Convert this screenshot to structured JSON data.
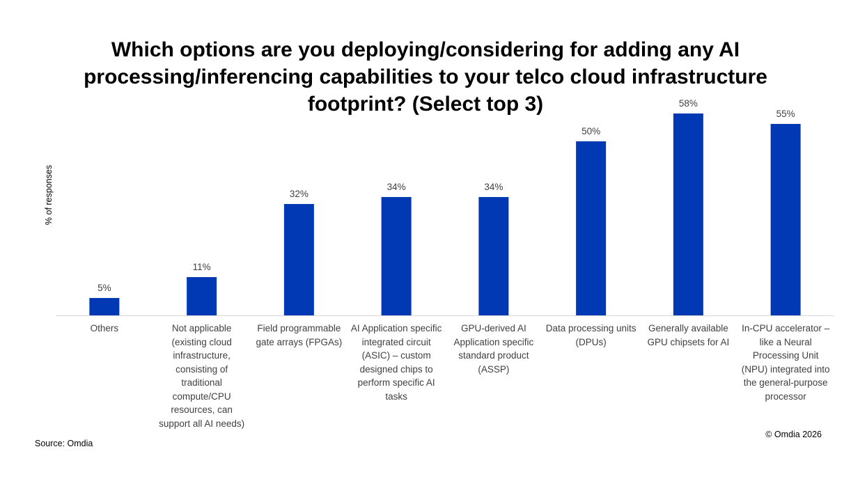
{
  "chart_data": {
    "type": "bar",
    "title": "Which options are you deploying/considering for adding any AI processing/inferencing capabilities to your telco cloud infrastructure footprint? (Select top 3)",
    "xlabel": "",
    "ylabel": "% of responses",
    "ylim": [
      0,
      60
    ],
    "grid": false,
    "categories": [
      "Others",
      "Not applicable (existing cloud infrastructure, consisting of traditional compute/CPU resources, can support all AI needs)",
      "Field programmable gate arrays (FPGAs)",
      "AI Application specific integrated circuit (ASIC) – custom designed chips to perform specific AI tasks",
      "GPU-derived AI Application specific standard product (ASSP)",
      "Data processing units (DPUs)",
      "Generally available GPU chipsets for AI",
      "In-CPU accelerator – like a Neural Processing Unit (NPU) integrated into the general-purpose processor"
    ],
    "values": [
      5,
      11,
      32,
      34,
      34,
      50,
      58,
      55
    ],
    "data_labels": [
      "5%",
      "11%",
      "32%",
      "34%",
      "34%",
      "50%",
      "58%",
      "55%"
    ],
    "bar_color": "#0039b3"
  },
  "footer": {
    "source": "Source: Omdia",
    "copyright": "© Omdia 2026"
  }
}
